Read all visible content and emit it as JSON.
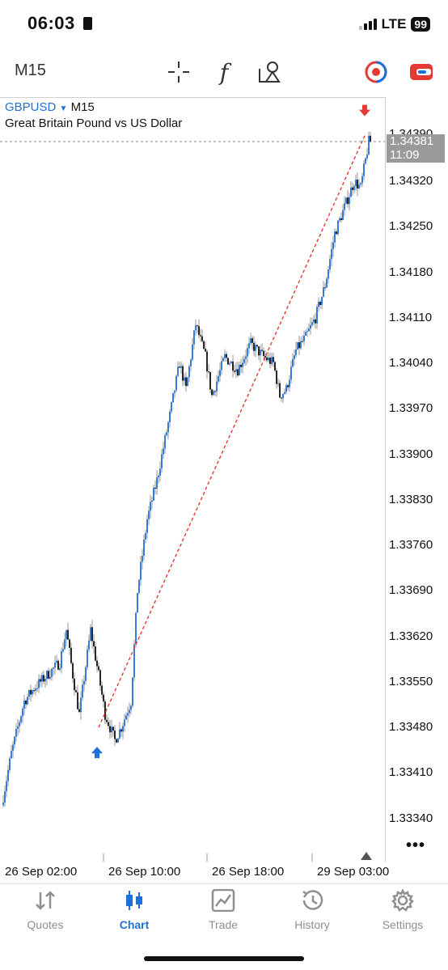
{
  "status_bar": {
    "time": "06:03",
    "network": "LTE",
    "battery": "99"
  },
  "toolbar": {
    "timeframe": "M15",
    "icons": [
      "crosshair-icon",
      "function-icon",
      "objects-icon",
      "trade-pair-icon",
      "one-click-icon"
    ]
  },
  "chart": {
    "symbol": "GBPUSD",
    "timeframe": "M15",
    "description": "Great Britain Pound vs US Dollar",
    "current_price": "1.34381",
    "countdown": "11:09",
    "top_price_label": "1.34390",
    "price_labels": [
      "1.34320",
      "1.34250",
      "1.34180",
      "1.34110",
      "1.34040",
      "1.33970",
      "1.33900",
      "1.33830",
      "1.33760",
      "1.33690",
      "1.33620",
      "1.33550",
      "1.33480",
      "1.33410",
      "1.33340"
    ],
    "time_labels": [
      "26 Sep 02:00",
      "26 Sep 10:00",
      "26 Sep 18:00",
      "29 Sep 03:00"
    ],
    "colors": {
      "bull": "#1e6fd9",
      "bear": "#111111",
      "trendline": "#e53935",
      "grid": "#888888"
    }
  },
  "tabs": [
    {
      "label": "Quotes",
      "icon": "quotes-icon"
    },
    {
      "label": "Chart",
      "icon": "chart-icon",
      "active": true
    },
    {
      "label": "Trade",
      "icon": "trade-icon"
    },
    {
      "label": "History",
      "icon": "history-icon"
    },
    {
      "label": "Settings",
      "icon": "settings-icon"
    }
  ]
}
